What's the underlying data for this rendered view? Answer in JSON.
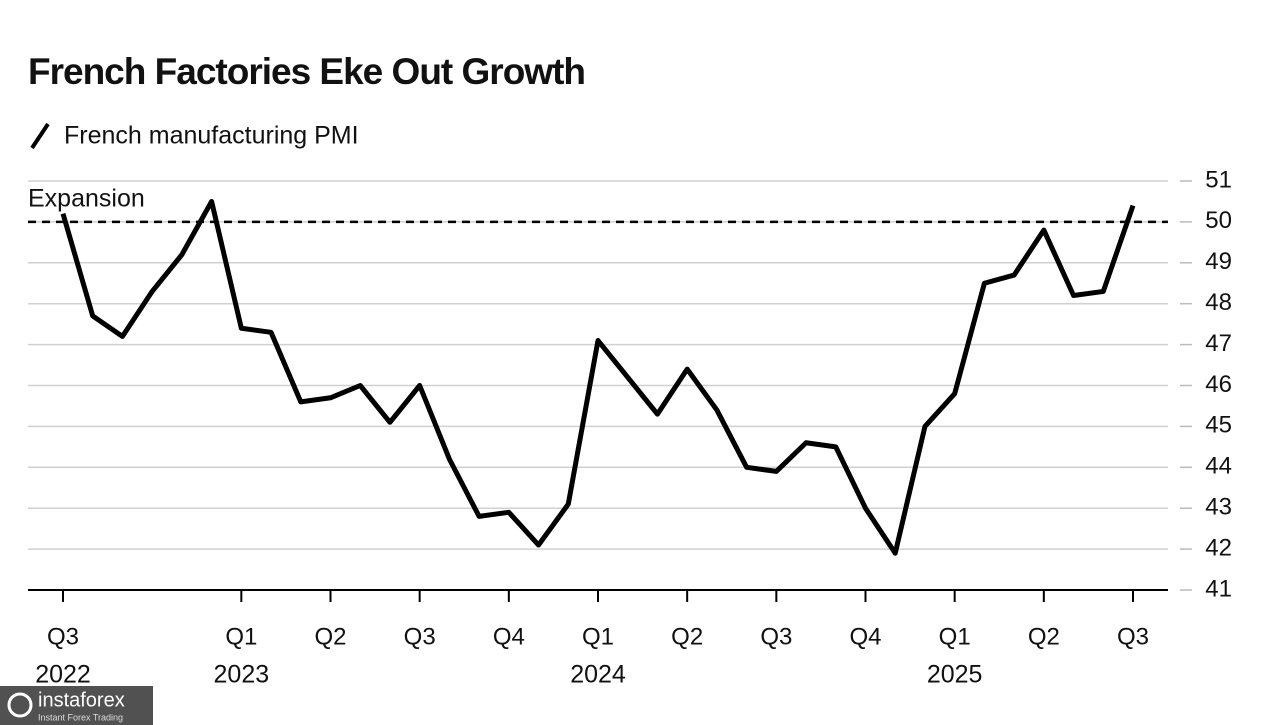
{
  "chart_data": {
    "type": "line",
    "title": "French Factories Eke Out Growth",
    "categories": [
      "Q3",
      null,
      null,
      null,
      null,
      null,
      "Q1",
      null,
      null,
      "Q2",
      null,
      null,
      "Q3",
      null,
      null,
      "Q4",
      null,
      null,
      "Q1",
      null,
      null,
      "Q2",
      null,
      null,
      "Q3",
      null,
      null,
      "Q4",
      null,
      null,
      "Q1",
      null,
      null,
      "Q2",
      null,
      null,
      "Q3"
    ],
    "years": [
      "2022",
      null,
      null,
      null,
      null,
      null,
      "2023",
      null,
      null,
      null,
      null,
      null,
      null,
      null,
      null,
      null,
      null,
      null,
      "2024",
      null,
      null,
      null,
      null,
      null,
      null,
      null,
      null,
      null,
      null,
      null,
      "2025",
      null,
      null,
      null,
      null,
      null,
      null
    ],
    "series": [
      {
        "name": "French manufacturing PMI",
        "color": "#000000",
        "values": [
          50.2,
          47.7,
          47.2,
          48.3,
          49.2,
          50.5,
          47.4,
          47.3,
          45.6,
          45.7,
          46.0,
          45.1,
          46.0,
          44.2,
          42.8,
          42.9,
          42.1,
          43.1,
          47.1,
          46.2,
          45.3,
          46.4,
          45.4,
          44.0,
          43.9,
          44.6,
          44.5,
          43.0,
          41.9,
          45.0,
          45.8,
          48.5,
          48.7,
          49.8,
          48.2,
          48.3,
          50.4
        ]
      }
    ],
    "reference_line": {
      "value": 50,
      "label": "Expansion"
    },
    "ylim": [
      41,
      51
    ],
    "yticks": [
      41,
      42,
      43,
      44,
      45,
      46,
      47,
      48,
      49,
      50,
      51
    ],
    "grid": true,
    "axis_side": "right",
    "legend": "top-left"
  },
  "watermark": {
    "name": "instaforex",
    "tagline": "Instant Forex Trading"
  }
}
